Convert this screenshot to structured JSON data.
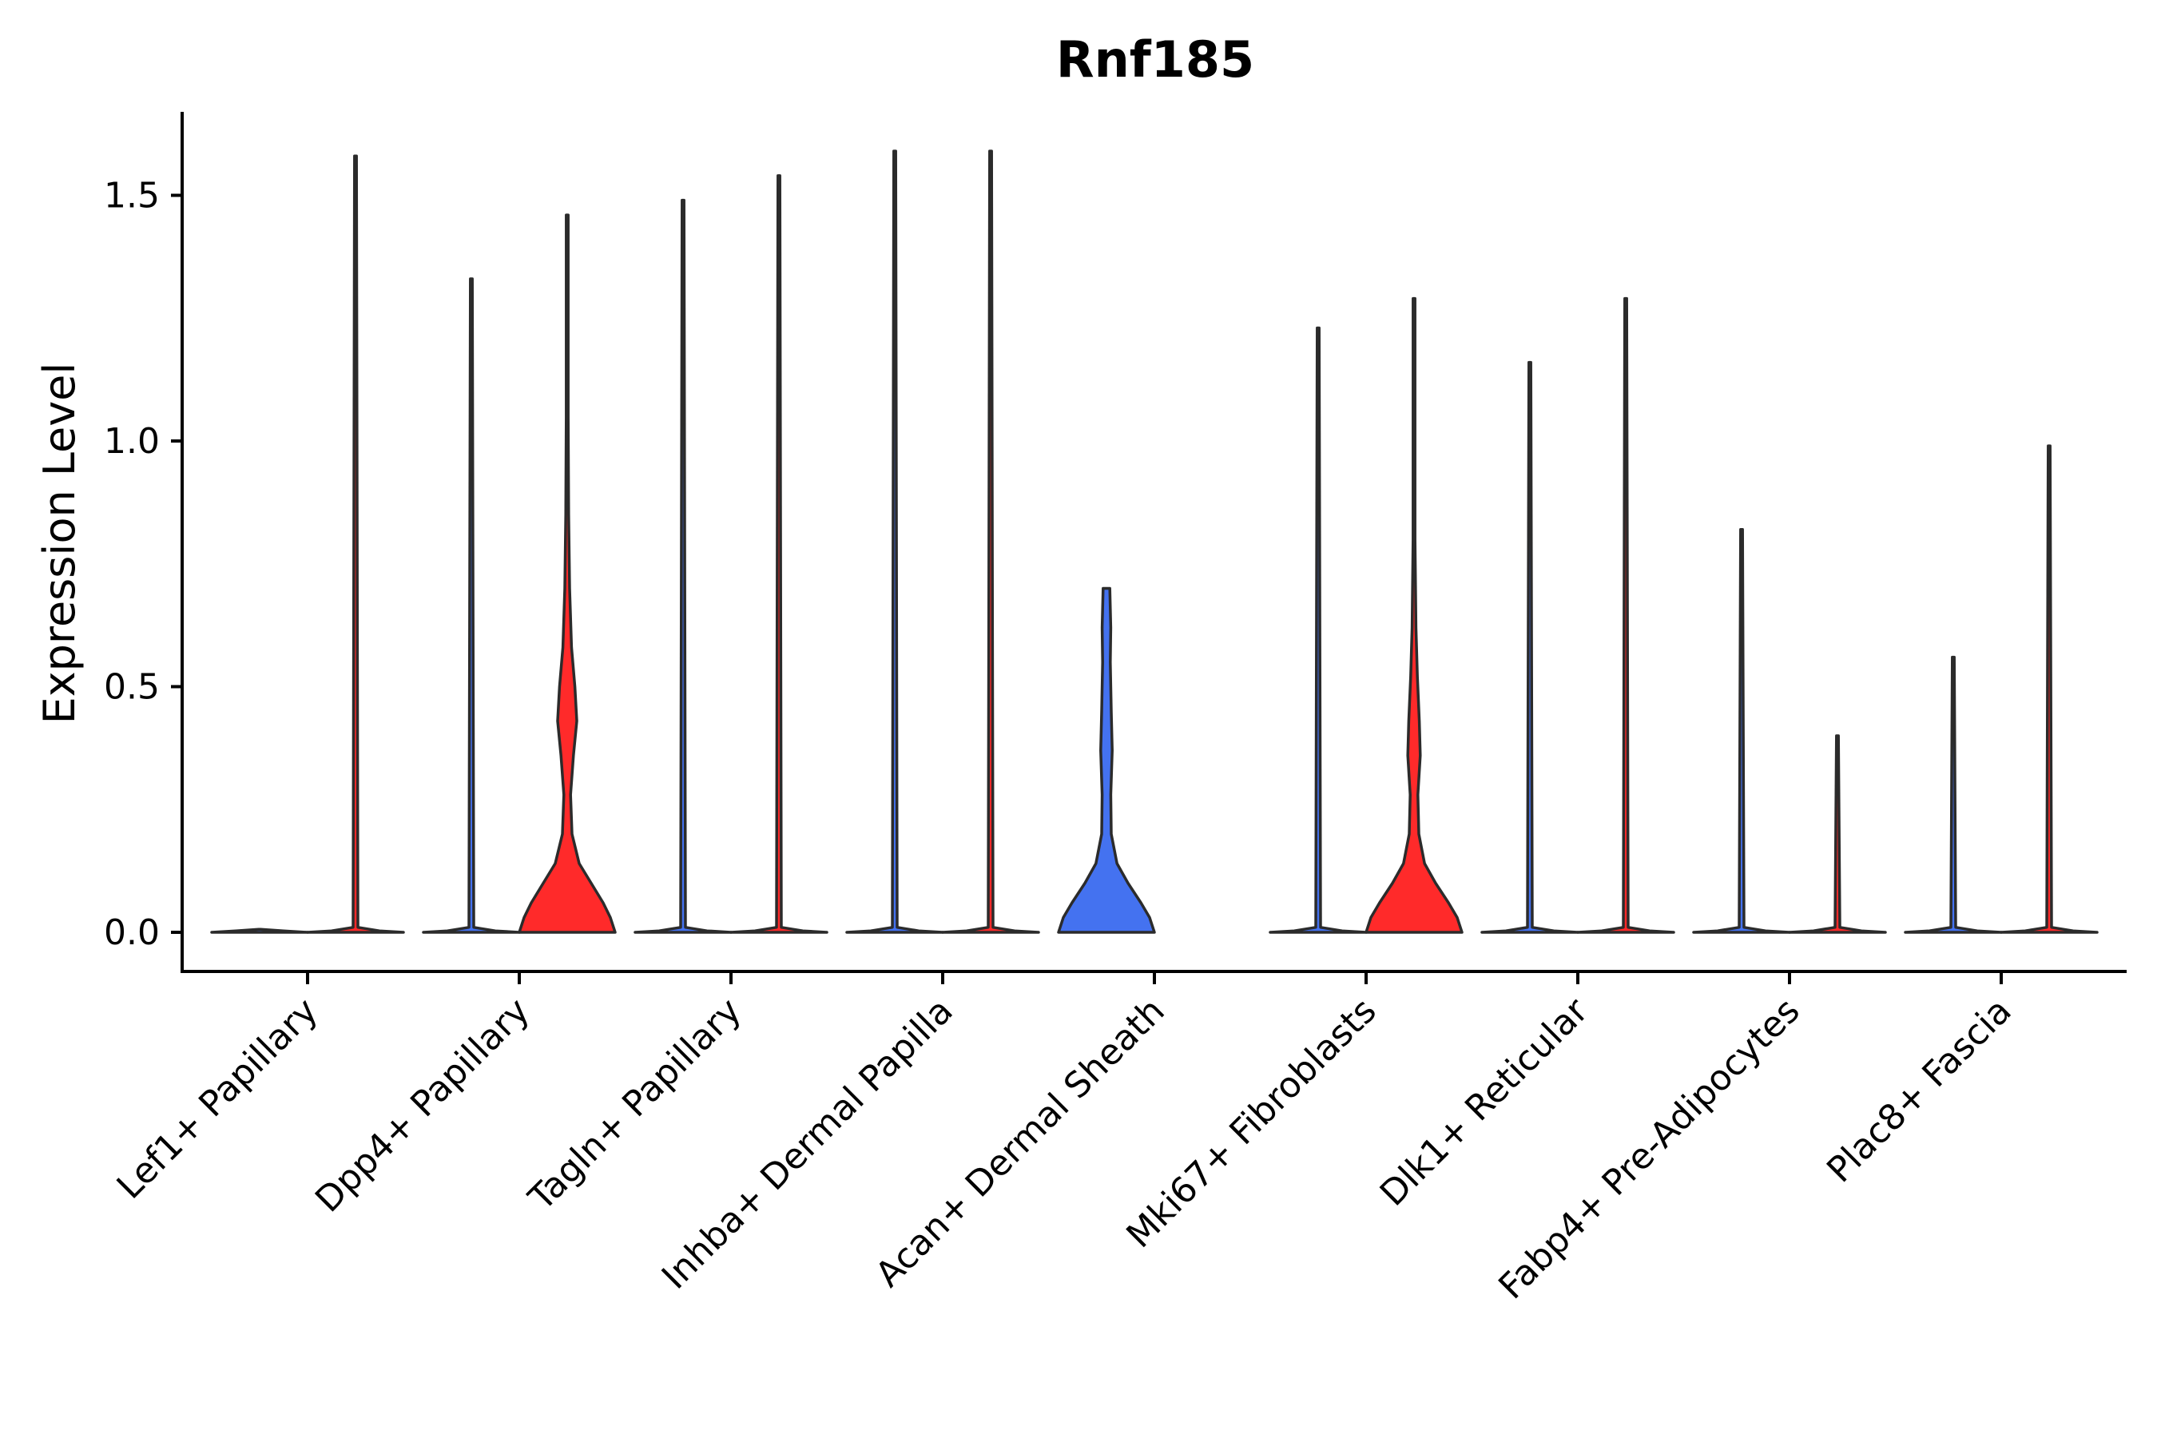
{
  "chart_data": {
    "type": "violin",
    "title": "Rnf185",
    "xlabel": "",
    "ylabel": "Expression Level",
    "ylim": [
      -0.08,
      1.67
    ],
    "yticks": [
      0.0,
      0.5,
      1.0,
      1.5
    ],
    "ytick_labels": [
      "0.0",
      "0.5",
      "1.0",
      "1.5"
    ],
    "grid": false,
    "legend": false,
    "categories": [
      "Lef1+ Papillary",
      "Dpp4+ Papillary",
      "Tagln+ Papillary",
      "Inhba+ Dermal Papilla",
      "Acan+ Dermal Sheath",
      "Mki67+ Fibroblasts",
      "Dlk1+ Reticular",
      "Fabp4+ Pre-Adipocytes",
      "Plac8+ Fascia"
    ],
    "series": [
      {
        "color": "#ff2a2a",
        "violins": [
          {
            "category": "Lef1+ Papillary",
            "max": 1.58,
            "profile": [
              [
                0,
                1.0
              ],
              [
                0.003,
                0.5
              ],
              [
                0.01,
                0.05
              ],
              [
                1.58,
                0.005
              ]
            ]
          },
          {
            "category": "Dpp4+ Papillary",
            "max": 1.46,
            "profile": [
              [
                0,
                1.0
              ],
              [
                0.03,
                0.9
              ],
              [
                0.06,
                0.75
              ],
              [
                0.1,
                0.5
              ],
              [
                0.14,
                0.25
              ],
              [
                0.2,
                0.1
              ],
              [
                0.28,
                0.07
              ],
              [
                0.36,
                0.13
              ],
              [
                0.43,
                0.2
              ],
              [
                0.5,
                0.16
              ],
              [
                0.58,
                0.09
              ],
              [
                0.7,
                0.05
              ],
              [
                0.85,
                0.03
              ],
              [
                1.05,
                0.012
              ],
              [
                1.46,
                0.005
              ]
            ]
          },
          {
            "category": "Tagln+ Papillary",
            "max": 1.54,
            "profile": [
              [
                0,
                1.0
              ],
              [
                0.003,
                0.5
              ],
              [
                0.01,
                0.05
              ],
              [
                1.54,
                0.005
              ]
            ]
          },
          {
            "category": "Inhba+ Dermal Papilla",
            "max": 1.59,
            "profile": [
              [
                0,
                1.0
              ],
              [
                0.003,
                0.5
              ],
              [
                0.01,
                0.05
              ],
              [
                1.59,
                0.005
              ]
            ]
          },
          {
            "category": "Mki67+ Fibroblasts",
            "max": 1.29,
            "profile": [
              [
                0,
                1.0
              ],
              [
                0.03,
                0.9
              ],
              [
                0.06,
                0.72
              ],
              [
                0.1,
                0.45
              ],
              [
                0.14,
                0.22
              ],
              [
                0.2,
                0.1
              ],
              [
                0.28,
                0.08
              ],
              [
                0.36,
                0.13
              ],
              [
                0.43,
                0.11
              ],
              [
                0.52,
                0.07
              ],
              [
                0.62,
                0.04
              ],
              [
                0.8,
                0.02
              ],
              [
                1.29,
                0.005
              ]
            ]
          },
          {
            "category": "Dlk1+ Reticular",
            "max": 1.29,
            "profile": [
              [
                0,
                1.0
              ],
              [
                0.003,
                0.5
              ],
              [
                0.01,
                0.05
              ],
              [
                1.29,
                0.005
              ]
            ]
          },
          {
            "category": "Fabp4+ Pre-Adipocytes",
            "max": 0.4,
            "profile": [
              [
                0,
                1.0
              ],
              [
                0.003,
                0.5
              ],
              [
                0.01,
                0.05
              ],
              [
                0.4,
                0.02
              ]
            ]
          },
          {
            "category": "Plac8+ Fascia",
            "max": 0.99,
            "profile": [
              [
                0,
                1.0
              ],
              [
                0.003,
                0.5
              ],
              [
                0.01,
                0.05
              ],
              [
                0.99,
                0.005
              ]
            ]
          }
        ]
      },
      {
        "color": "#4472f0",
        "violins": [
          {
            "category": "Lef1+ Papillary",
            "max": 0.0,
            "profile": [
              [
                0,
                1.0
              ],
              [
                0.003,
                0.5
              ],
              [
                0.006,
                0.0
              ]
            ]
          },
          {
            "category": "Dpp4+ Papillary",
            "max": 1.33,
            "profile": [
              [
                0,
                1.0
              ],
              [
                0.003,
                0.5
              ],
              [
                0.01,
                0.05
              ],
              [
                1.33,
                0.005
              ]
            ]
          },
          {
            "category": "Tagln+ Papillary",
            "max": 1.49,
            "profile": [
              [
                0,
                1.0
              ],
              [
                0.003,
                0.5
              ],
              [
                0.01,
                0.05
              ],
              [
                1.49,
                0.005
              ]
            ]
          },
          {
            "category": "Inhba+ Dermal Papilla",
            "max": 1.59,
            "profile": [
              [
                0,
                1.0
              ],
              [
                0.003,
                0.5
              ],
              [
                0.01,
                0.05
              ],
              [
                1.59,
                0.005
              ]
            ]
          },
          {
            "category": "Acan+ Dermal Sheath",
            "max": 0.7,
            "profile": [
              [
                0,
                1.0
              ],
              [
                0.03,
                0.9
              ],
              [
                0.06,
                0.72
              ],
              [
                0.1,
                0.45
              ],
              [
                0.14,
                0.22
              ],
              [
                0.2,
                0.1
              ],
              [
                0.28,
                0.09
              ],
              [
                0.37,
                0.12
              ],
              [
                0.45,
                0.1
              ],
              [
                0.55,
                0.08
              ],
              [
                0.62,
                0.09
              ],
              [
                0.7,
                0.07
              ]
            ]
          },
          {
            "category": "Mki67+ Fibroblasts",
            "max": 1.23,
            "profile": [
              [
                0,
                1.0
              ],
              [
                0.003,
                0.5
              ],
              [
                0.01,
                0.05
              ],
              [
                1.23,
                0.005
              ]
            ]
          },
          {
            "category": "Dlk1+ Reticular",
            "max": 1.16,
            "profile": [
              [
                0,
                1.0
              ],
              [
                0.003,
                0.5
              ],
              [
                0.01,
                0.05
              ],
              [
                1.16,
                0.005
              ]
            ]
          },
          {
            "category": "Fabp4+ Pre-Adipocytes",
            "max": 0.82,
            "profile": [
              [
                0,
                1.0
              ],
              [
                0.003,
                0.5
              ],
              [
                0.01,
                0.05
              ],
              [
                0.82,
                0.005
              ]
            ]
          },
          {
            "category": "Plac8+ Fascia",
            "max": 0.56,
            "profile": [
              [
                0,
                1.0
              ],
              [
                0.003,
                0.5
              ],
              [
                0.01,
                0.05
              ],
              [
                0.56,
                0.005
              ]
            ]
          }
        ]
      }
    ]
  }
}
